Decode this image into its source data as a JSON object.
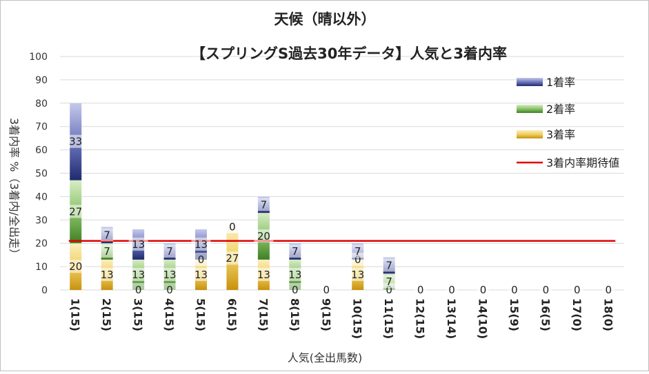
{
  "chart_data": {
    "type": "bar",
    "stacked": true,
    "title": "天候（晴以外）",
    "subtitle": "【スプリングS過去30年データ】人気と3着内率",
    "xlabel": "人気(全出馬数)",
    "ylabel": "3着内率 %（3着内/全出走）",
    "ylim": [
      0,
      100
    ],
    "yticks": [
      0,
      10,
      20,
      30,
      40,
      50,
      60,
      70,
      80,
      90,
      100
    ],
    "grid": true,
    "legend_position": "top-right",
    "categories": [
      "1(15)",
      "2(15)",
      "3(15)",
      "4(15)",
      "5(15)",
      "6(15)",
      "7(15)",
      "8(15)",
      "9(15)",
      "10(15)",
      "11(15)",
      "12(15)",
      "13(14)",
      "14(10)",
      "15(9)",
      "16(5)",
      "17(0)",
      "18(0)"
    ],
    "series": [
      {
        "name": "3着率",
        "color": "#d4a017",
        "values": [
          20,
          13,
          0,
          0,
          13,
          27,
          13,
          0,
          0,
          13,
          0,
          0,
          0,
          0,
          0,
          0,
          0,
          0
        ],
        "labels": [
          "20",
          "13",
          "0",
          "0",
          "13",
          "27",
          "13",
          "0",
          "0",
          "13",
          "0",
          "0",
          "0",
          "0",
          "0",
          "0",
          "0",
          "0"
        ]
      },
      {
        "name": "2着率",
        "color": "#5a9e3a",
        "values": [
          27,
          7,
          13,
          13,
          0,
          0,
          20,
          13,
          0,
          0,
          7,
          0,
          0,
          0,
          0,
          0,
          0,
          0
        ],
        "labels": [
          "27",
          "7",
          "13",
          "13",
          "0",
          "0",
          "20",
          "13",
          "",
          "0",
          "7",
          "",
          "",
          "",
          "",
          "",
          "",
          ""
        ]
      },
      {
        "name": "1着率",
        "color": "#3a4a9e",
        "values": [
          33,
          7,
          13,
          7,
          13,
          0,
          7,
          7,
          0,
          7,
          7,
          0,
          0,
          0,
          0,
          0,
          0,
          0
        ],
        "labels": [
          "33",
          "7",
          "13",
          "7",
          "13",
          "0",
          "7",
          "7",
          "",
          "7",
          "7",
          "",
          "",
          "",
          "",
          "",
          "",
          ""
        ]
      }
    ],
    "reference_line": {
      "name": "3着内率期待値",
      "value": 21,
      "color": "#e00000"
    }
  }
}
